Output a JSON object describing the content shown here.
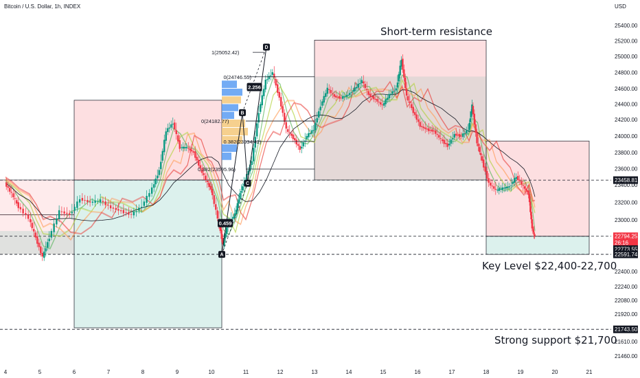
{
  "header": {
    "title": "Bitcoin / U.S. Dollar, 1h, INDEX",
    "currency": "USD"
  },
  "chart_data": {
    "type": "candlestick",
    "symbol": "Bitcoin / U.S. Dollar",
    "interval": "1h",
    "ylim": [
      21380,
      25560
    ],
    "xlim": [
      4.0,
      21.7
    ],
    "yticks": [
      25400,
      25200,
      25000,
      24800,
      24600,
      24400,
      24200,
      24000,
      23800,
      23600,
      23400,
      23200,
      23000,
      22800,
      22600,
      22400,
      22240,
      22080,
      21920,
      21760,
      21610,
      21460
    ],
    "ytick_labels": [
      "25400.00",
      "25200.00",
      "25000.00",
      "24800.00",
      "24600.00",
      "24400.00",
      "24200.00",
      "24000.00",
      "23800.00",
      "23600.00",
      "23400.00",
      "23200.00",
      "23000.00",
      "22800.00",
      "22600.00",
      "22400.00",
      "22240.00",
      "22080.00",
      "21920.00",
      "21760.00",
      "21610.00",
      "21460.00"
    ],
    "xticks": [
      4,
      5,
      6,
      7,
      8,
      9,
      10,
      11,
      12,
      13,
      14,
      15,
      16,
      17,
      18,
      19,
      20,
      21
    ],
    "xtick_labels": [
      "4",
      "5",
      "6",
      "7",
      "8",
      "9",
      "10",
      "11",
      "12",
      "13",
      "14",
      "15",
      "16",
      "17",
      "18",
      "19",
      "20",
      "21"
    ],
    "price_path": [
      [
        4.0,
        23420
      ],
      [
        4.2,
        23300
      ],
      [
        4.4,
        23150
      ],
      [
        4.7,
        23020
      ],
      [
        4.9,
        22780
      ],
      [
        5.1,
        22560
      ],
      [
        5.3,
        22780
      ],
      [
        5.6,
        23100
      ],
      [
        5.9,
        23060
      ],
      [
        6.2,
        23240
      ],
      [
        6.5,
        23200
      ],
      [
        6.8,
        23220
      ],
      [
        7.1,
        23140
      ],
      [
        7.4,
        23100
      ],
      [
        7.7,
        23060
      ],
      [
        8.0,
        23160
      ],
      [
        8.3,
        23360
      ],
      [
        8.5,
        23580
      ],
      [
        8.7,
        24060
      ],
      [
        8.9,
        24160
      ],
      [
        9.1,
        23860
      ],
      [
        9.3,
        23860
      ],
      [
        9.5,
        23800
      ],
      [
        9.7,
        23600
      ],
      [
        9.9,
        23420
      ],
      [
        10.0,
        23360
      ],
      [
        10.2,
        23020
      ],
      [
        10.35,
        22700
      ],
      [
        10.5,
        22960
      ],
      [
        10.7,
        23060
      ],
      [
        10.85,
        23300
      ],
      [
        11.0,
        23460
      ],
      [
        11.2,
        23700
      ],
      [
        11.4,
        24300
      ],
      [
        11.6,
        24700
      ],
      [
        11.8,
        24800
      ],
      [
        12.0,
        24480
      ],
      [
        12.2,
        24080
      ],
      [
        12.4,
        23980
      ],
      [
        12.6,
        23840
      ],
      [
        12.8,
        24000
      ],
      [
        13.0,
        24080
      ],
      [
        13.2,
        24380
      ],
      [
        13.4,
        24600
      ],
      [
        13.6,
        24500
      ],
      [
        13.8,
        24480
      ],
      [
        14.0,
        24520
      ],
      [
        14.2,
        24600
      ],
      [
        14.4,
        24700
      ],
      [
        14.6,
        24520
      ],
      [
        14.8,
        24460
      ],
      [
        15.0,
        24380
      ],
      [
        15.2,
        24520
      ],
      [
        15.4,
        24600
      ],
      [
        15.55,
        24960
      ],
      [
        15.7,
        24500
      ],
      [
        15.9,
        24300
      ],
      [
        16.1,
        24120
      ],
      [
        16.3,
        24080
      ],
      [
        16.5,
        24060
      ],
      [
        16.7,
        23960
      ],
      [
        16.9,
        23880
      ],
      [
        17.1,
        24020
      ],
      [
        17.3,
        24000
      ],
      [
        17.5,
        24080
      ],
      [
        17.6,
        24380
      ],
      [
        17.75,
        23920
      ],
      [
        17.9,
        23700
      ],
      [
        18.1,
        23420
      ],
      [
        18.3,
        23340
      ],
      [
        18.5,
        23360
      ],
      [
        18.7,
        23380
      ],
      [
        18.9,
        23500
      ],
      [
        19.1,
        23380
      ],
      [
        19.25,
        23300
      ],
      [
        19.35,
        22900
      ],
      [
        19.42,
        22794
      ]
    ],
    "zones": [
      {
        "name": "trade-1",
        "x": [
          6.0,
          10.3
        ],
        "top": 24450,
        "entry": 23460,
        "bottom": 21760
      },
      {
        "name": "trade-2",
        "x": [
          13.0,
          18.0
        ],
        "top": 25210,
        "entry": 23460,
        "bottom": 23460
      },
      {
        "name": "trade-3",
        "x": [
          18.0,
          21.0
        ],
        "top": 23940,
        "entry": 22794,
        "bottom": 22591
      }
    ],
    "pattern_points": [
      {
        "label": "A",
        "x": 10.3,
        "y": 22591
      },
      {
        "label": "B",
        "x": 10.9,
        "y": 24290
      },
      {
        "label": "C",
        "x": 11.05,
        "y": 23420
      },
      {
        "label": "D",
        "x": 11.6,
        "y": 25120
      }
    ],
    "ratios": [
      {
        "value": "0.459",
        "x": 10.4,
        "y": 22960
      },
      {
        "value": "2.256",
        "x": 11.25,
        "y": 24620
      }
    ],
    "fib_levels": [
      {
        "label": "1(25052.42)",
        "price": 25052.42
      },
      {
        "label": "0(24746.55)",
        "price": 24746.55
      },
      {
        "label": "0(24182.77)",
        "price": 24182.77
      },
      {
        "label": "0.382(23934.42)",
        "price": 23934.42
      },
      {
        "label": "0.382(23595.96)",
        "price": 23595.96
      }
    ],
    "h_levels": [
      {
        "value": 23458.81,
        "label": "23458.81",
        "color": "#131722"
      },
      {
        "value": 22794.25,
        "label": "22794.25",
        "color": "#f23645"
      },
      {
        "value": 22773.55,
        "label": "22773.55",
        "color": "#131722"
      },
      {
        "value": 22591.74,
        "label": "22591.74",
        "color": "#131722"
      },
      {
        "value": 21743.5,
        "label": "21743.50",
        "color": "#131722"
      }
    ],
    "countdown": "26:16",
    "annotations": {
      "resistance": "Short-term resistance",
      "key_level": "Key Level $22,400-22,700",
      "support": "Strong support $21,700"
    }
  }
}
